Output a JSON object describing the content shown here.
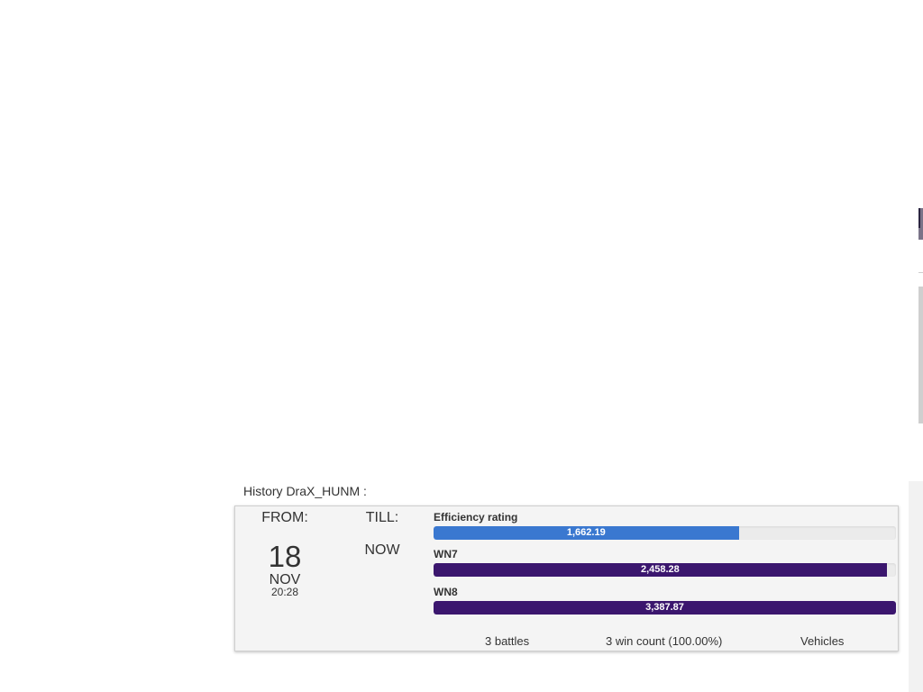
{
  "history": {
    "title": "History DraX_HUNM :"
  },
  "period": {
    "from_label": "FROM:",
    "from_day": "18",
    "from_month": "NOV",
    "from_time": "20:28",
    "till_label": "TILL:",
    "till_value": "NOW"
  },
  "metrics": [
    {
      "label": "Efficiency rating",
      "value": "1,662.19",
      "fill_fraction": 0.66,
      "color": "#3a78d0"
    },
    {
      "label": "WN7",
      "value": "2,458.28",
      "fill_fraction": 0.98,
      "color": "#3b166e"
    },
    {
      "label": "WN8",
      "value": "3,387.87",
      "fill_fraction": 1.0,
      "color": "#3b166e"
    }
  ],
  "summary": {
    "battles": "3 battles",
    "wins": "3 win count (100.00%)",
    "vehicles": "Vehicles"
  }
}
